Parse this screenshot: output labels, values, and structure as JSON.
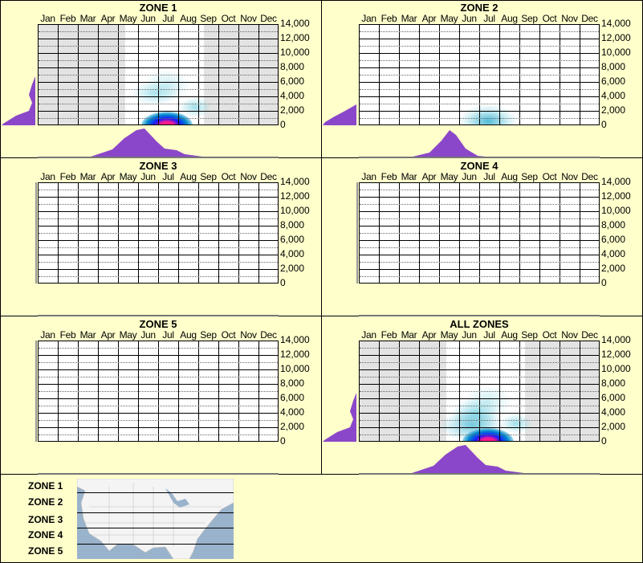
{
  "chart_data": [
    {
      "type": "heatmap",
      "title": "ZONE 1",
      "xlabel": "",
      "ylabel": "",
      "x_categories": [
        "Jan",
        "Feb",
        "Mar",
        "Apr",
        "May",
        "Jun",
        "Jul",
        "Aug",
        "Sep",
        "Oct",
        "Nov",
        "Dec"
      ],
      "y_ticks": [
        0,
        2000,
        4000,
        6000,
        8000,
        10000,
        12000,
        14000
      ],
      "ylim": [
        0,
        14000
      ],
      "active_months": [
        "Jun",
        "Jul",
        "Aug"
      ],
      "density_peak": {
        "month": "Jul",
        "elevation": 0
      },
      "hotspots": [
        {
          "month": "Jul",
          "elevation": 200,
          "intensity": "very high"
        },
        {
          "month": "Jun",
          "elevation": 4500,
          "intensity": "low"
        },
        {
          "month": "Jul",
          "elevation": 5500,
          "intensity": "low"
        },
        {
          "month": "Aug",
          "elevation": 2200,
          "intensity": "low"
        }
      ],
      "month_histogram": {
        "Jan": 0,
        "Feb": 0,
        "Mar": 0,
        "Apr": 0,
        "May": 0.05,
        "Jun": 0.35,
        "Jul": 1.0,
        "Aug": 0.3,
        "Sep": 0.05,
        "Oct": 0,
        "Nov": 0,
        "Dec": 0
      },
      "elevation_histogram_peak": 0
    },
    {
      "type": "heatmap",
      "title": "ZONE 2",
      "x_categories": [
        "Jan",
        "Feb",
        "Mar",
        "Apr",
        "May",
        "Jun",
        "Jul",
        "Aug",
        "Sep",
        "Oct",
        "Nov",
        "Dec"
      ],
      "y_ticks": [
        0,
        2000,
        4000,
        6000,
        8000,
        10000,
        12000,
        14000
      ],
      "ylim": [
        0,
        14000
      ],
      "hotspots": [
        {
          "month": "Jul",
          "elevation": 700,
          "intensity": "low"
        }
      ],
      "month_histogram": {
        "Jan": 0,
        "Feb": 0,
        "Mar": 0,
        "Apr": 0,
        "May": 0,
        "Jun": 0.2,
        "Jul": 1.0,
        "Aug": 0.2,
        "Sep": 0,
        "Oct": 0,
        "Nov": 0,
        "Dec": 0
      }
    },
    {
      "type": "heatmap",
      "title": "ZONE 3",
      "x_categories": [
        "Jan",
        "Feb",
        "Mar",
        "Apr",
        "May",
        "Jun",
        "Jul",
        "Aug",
        "Sep",
        "Oct",
        "Nov",
        "Dec"
      ],
      "y_ticks": [
        0,
        2000,
        4000,
        6000,
        8000,
        10000,
        12000,
        14000
      ],
      "ylim": [
        0,
        14000
      ],
      "hotspots": []
    },
    {
      "type": "heatmap",
      "title": "ZONE 4",
      "x_categories": [
        "Jan",
        "Feb",
        "Mar",
        "Apr",
        "May",
        "Jun",
        "Jul",
        "Aug",
        "Sep",
        "Oct",
        "Nov",
        "Dec"
      ],
      "y_ticks": [
        0,
        2000,
        4000,
        6000,
        8000,
        10000,
        12000,
        14000
      ],
      "ylim": [
        0,
        14000
      ],
      "hotspots": []
    },
    {
      "type": "heatmap",
      "title": "ZONE 5",
      "x_categories": [
        "Jan",
        "Feb",
        "Mar",
        "Apr",
        "May",
        "Jun",
        "Jul",
        "Aug",
        "Sep",
        "Oct",
        "Nov",
        "Dec"
      ],
      "y_ticks": [
        0,
        2000,
        4000,
        6000,
        8000,
        10000,
        12000,
        14000
      ],
      "ylim": [
        0,
        14000
      ],
      "hotspots": []
    },
    {
      "type": "heatmap",
      "title": "ALL ZONES",
      "x_categories": [
        "Jan",
        "Feb",
        "Mar",
        "Apr",
        "May",
        "Jun",
        "Jul",
        "Aug",
        "Sep",
        "Oct",
        "Nov",
        "Dec"
      ],
      "y_ticks": [
        0,
        2000,
        4000,
        6000,
        8000,
        10000,
        12000,
        14000
      ],
      "ylim": [
        0,
        14000
      ],
      "active_months": [
        "Jun",
        "Jul",
        "Aug"
      ],
      "hotspots": [
        {
          "month": "Jul",
          "elevation": 200,
          "intensity": "very high"
        },
        {
          "month": "Jun",
          "elevation": 2500,
          "intensity": "medium"
        },
        {
          "month": "Jul",
          "elevation": 5000,
          "intensity": "low"
        },
        {
          "month": "Aug",
          "elevation": 2500,
          "intensity": "low"
        }
      ],
      "month_histogram": {
        "Jan": 0,
        "Feb": 0,
        "Mar": 0,
        "Apr": 0,
        "May": 0.05,
        "Jun": 0.4,
        "Jul": 1.0,
        "Aug": 0.35,
        "Sep": 0.05,
        "Oct": 0,
        "Nov": 0,
        "Dec": 0
      }
    }
  ],
  "months": [
    "Jan",
    "Feb",
    "Mar",
    "Apr",
    "May",
    "Jun",
    "Jul",
    "Aug",
    "Sep",
    "Oct",
    "Nov",
    "Dec"
  ],
  "y_labels": [
    "14,000",
    "12,000",
    "10,000",
    "8,000",
    "6,000",
    "4,000",
    "2,000",
    "0"
  ],
  "panels": {
    "z1": {
      "title": "ZONE 1"
    },
    "z2": {
      "title": "ZONE 2"
    },
    "z3": {
      "title": "ZONE 3"
    },
    "z4": {
      "title": "ZONE 4"
    },
    "z5": {
      "title": "ZONE 5"
    },
    "all": {
      "title": "ALL ZONES"
    }
  },
  "legend": {
    "zones": [
      "ZONE 1",
      "ZONE 2",
      "ZONE 3",
      "ZONE 4",
      "ZONE 5"
    ]
  },
  "colors": {
    "background": "#ffffcc",
    "histogram": "#8b47c9",
    "inactive_month": "#e3e3e3",
    "heat_low": "#a8e2ea",
    "heat_high": "#ff1a8c"
  }
}
